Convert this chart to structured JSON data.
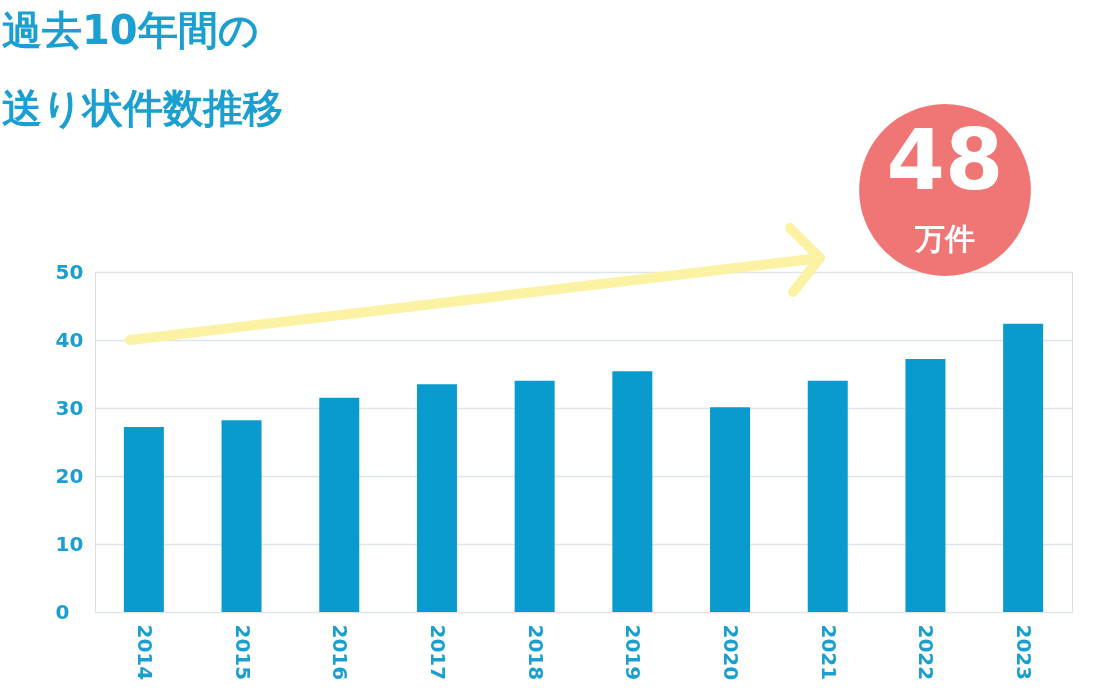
{
  "chart_data": {
    "type": "bar",
    "title": "過去10年間の送り状件数推移",
    "categories": [
      "2014",
      "2015",
      "2016",
      "2017",
      "2018",
      "2019",
      "2020",
      "2021",
      "2022",
      "2023"
    ],
    "series": [
      {
        "color": "#0a9bce",
        "values": [
          27.2,
          28.2,
          31.5,
          33.5,
          34.0,
          35.4,
          30.1,
          34.0,
          37.2,
          42.4
        ]
      }
    ],
    "ylim": [
      0,
      50
    ],
    "yticks": [
      0,
      10,
      20,
      30,
      40,
      50
    ],
    "grid": "y",
    "annotations": [
      "48",
      "万件"
    ]
  }
}
